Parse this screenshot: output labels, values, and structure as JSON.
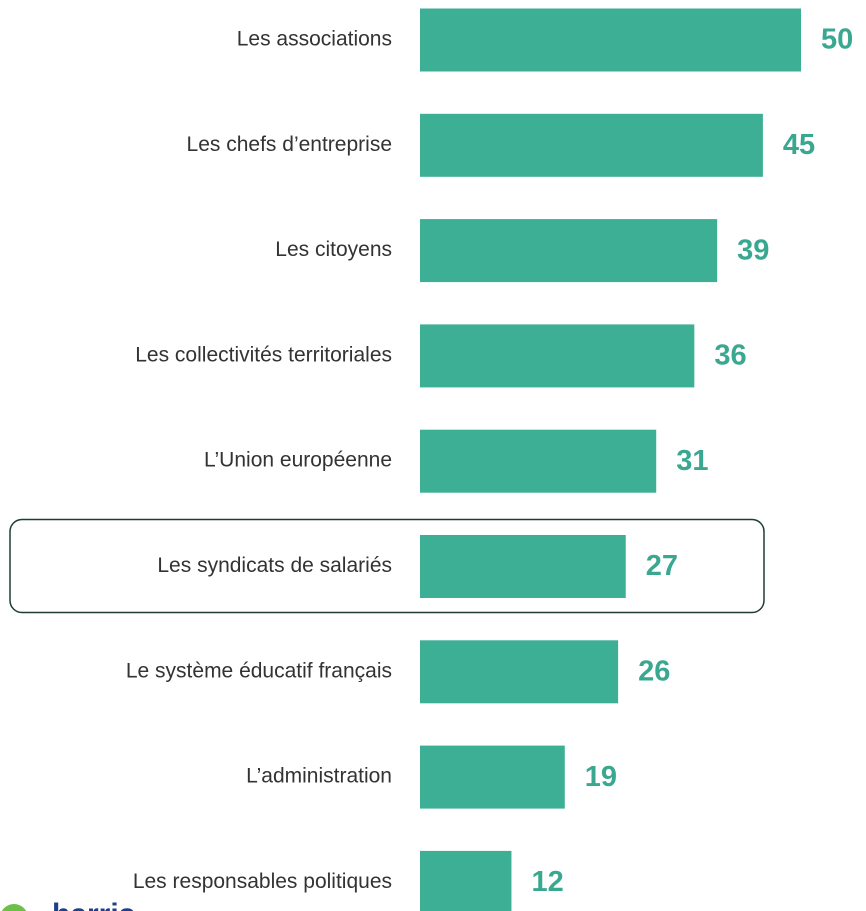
{
  "chart_data": {
    "type": "barh",
    "categories": [
      "Les associations",
      "Les chefs d’entreprise",
      "Les citoyens",
      "Les collectivités territoriales",
      "L’Union européenne",
      "Les syndicats de salariés",
      "Le système éducatif français",
      "L’administration",
      "Les responsables politiques"
    ],
    "values": [
      50,
      45,
      39,
      36,
      31,
      27,
      26,
      19,
      12
    ],
    "color": "#3daf94",
    "label_color": "#3aa891",
    "xlim": [
      0,
      50
    ],
    "highlight_index": 5,
    "logo": "harris"
  }
}
